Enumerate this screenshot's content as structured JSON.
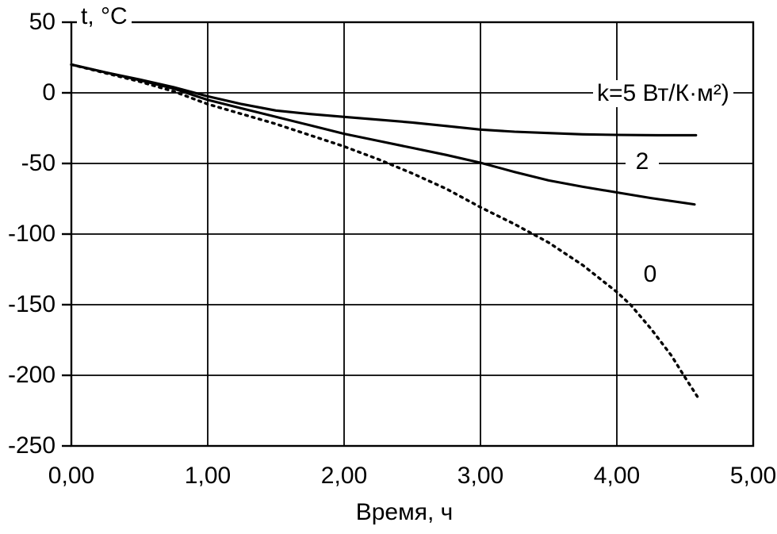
{
  "chart_data": {
    "type": "line",
    "title": "",
    "xlabel": "Время, ч",
    "ylabel": "t, °C",
    "xlim": [
      0,
      5
    ],
    "ylim": [
      -250,
      50
    ],
    "grid": true,
    "legend_position": "inline-labels",
    "x_tick_labels": [
      "0,00",
      "1,00",
      "2,00",
      "3,00",
      "4,00",
      "5,00"
    ],
    "x_tick_values": [
      0,
      1,
      2,
      3,
      4,
      5
    ],
    "y_tick_labels": [
      "50",
      "0",
      "-50",
      "-100",
      "-150",
      "-200",
      "-250"
    ],
    "y_tick_values": [
      50,
      0,
      -50,
      -100,
      -150,
      -200,
      -250
    ],
    "colors": {
      "line": "#000000",
      "background": "#ffffff"
    },
    "series": [
      {
        "name": "k=5 Вт/(К·м²)",
        "label_text": "k=5 Вт/К·м²)",
        "line_style": "solid",
        "points": [
          [
            0,
            20
          ],
          [
            0.25,
            14.5
          ],
          [
            0.5,
            9.5
          ],
          [
            0.75,
            4
          ],
          [
            1,
            -2.5
          ],
          [
            1.25,
            -8
          ],
          [
            1.5,
            -12.5
          ],
          [
            1.75,
            -15
          ],
          [
            2,
            -17
          ],
          [
            2.25,
            -19
          ],
          [
            2.5,
            -21
          ],
          [
            2.75,
            -23.5
          ],
          [
            3,
            -26
          ],
          [
            3.25,
            -27.5
          ],
          [
            3.5,
            -28.5
          ],
          [
            3.75,
            -29.4
          ],
          [
            4,
            -29.8
          ],
          [
            4.3,
            -30
          ],
          [
            4.58,
            -30
          ]
        ]
      },
      {
        "name": "k=2 Вт/(К·м²)",
        "label_text": "2",
        "line_style": "solid",
        "points": [
          [
            0,
            20
          ],
          [
            0.25,
            14.5
          ],
          [
            0.5,
            9
          ],
          [
            0.75,
            3
          ],
          [
            1,
            -5
          ],
          [
            1.25,
            -11
          ],
          [
            1.5,
            -17
          ],
          [
            1.75,
            -23
          ],
          [
            2,
            -29
          ],
          [
            2.25,
            -34
          ],
          [
            2.5,
            -39
          ],
          [
            2.75,
            -44
          ],
          [
            3,
            -49.5
          ],
          [
            3.25,
            -56
          ],
          [
            3.5,
            -62
          ],
          [
            3.75,
            -66.5
          ],
          [
            4,
            -70.5
          ],
          [
            4.25,
            -74.5
          ],
          [
            4.57,
            -79
          ]
        ]
      },
      {
        "name": "k=0 Вт/(К·м²)",
        "label_text": "0",
        "line_style": "dotted",
        "points": [
          [
            0,
            20
          ],
          [
            0.25,
            14
          ],
          [
            0.5,
            8
          ],
          [
            0.75,
            1
          ],
          [
            1,
            -8
          ],
          [
            1.25,
            -15
          ],
          [
            1.5,
            -22
          ],
          [
            1.75,
            -30
          ],
          [
            2,
            -38
          ],
          [
            2.25,
            -47
          ],
          [
            2.5,
            -57
          ],
          [
            2.75,
            -68
          ],
          [
            3,
            -81
          ],
          [
            3.25,
            -93
          ],
          [
            3.5,
            -106
          ],
          [
            3.75,
            -122
          ],
          [
            4,
            -141
          ],
          [
            4.1,
            -150
          ],
          [
            4.25,
            -167
          ],
          [
            4.4,
            -186
          ],
          [
            4.49,
            -200
          ],
          [
            4.59,
            -215
          ]
        ]
      }
    ]
  }
}
